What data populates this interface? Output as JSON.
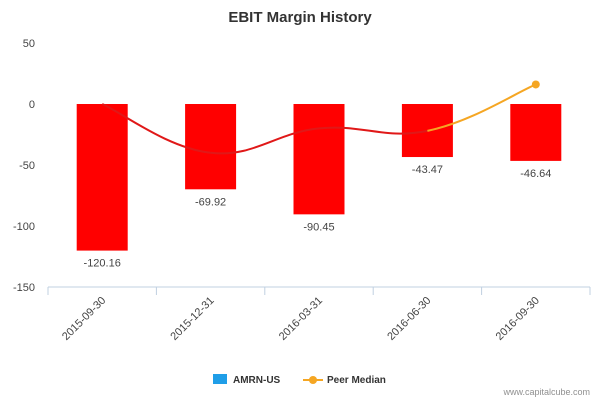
{
  "chart_data": {
    "type": "bar",
    "title": "EBIT Margin History",
    "xlabel": "",
    "ylabel": "",
    "categories": [
      "2015-09-30",
      "2015-12-31",
      "2016-03-31",
      "2016-06-30",
      "2016-09-30"
    ],
    "ylim": [
      -150,
      50
    ],
    "yticks": [
      50,
      0,
      -50,
      -100,
      -150
    ],
    "grid": false,
    "legend_position": "bottom",
    "series": [
      {
        "name": "AMRN-US",
        "kind": "bar",
        "color": "#ff0000",
        "legend_color": "#1f9ee8",
        "values": [
          -120.16,
          -69.92,
          -90.45,
          -43.47,
          -46.64
        ],
        "labels": [
          "-120.16",
          "-69.92",
          "-90.45",
          "-43.47",
          "-46.64"
        ]
      },
      {
        "name": "Peer Median",
        "kind": "line",
        "color": "#e01818",
        "last_segment_color": "#f5a623",
        "values": [
          0,
          -40,
          -20,
          -22,
          16
        ]
      }
    ]
  },
  "credit": "www.capitalcube.com"
}
